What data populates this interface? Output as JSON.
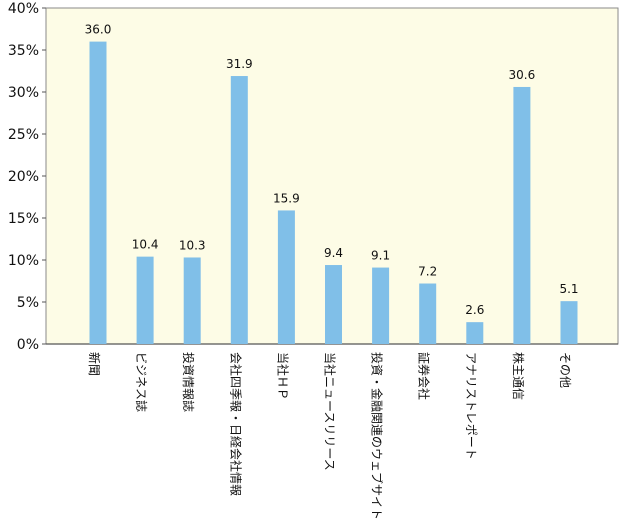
{
  "chart_data": {
    "type": "bar",
    "title": "",
    "xlabel": "",
    "ylabel": "",
    "categories": [
      "新聞",
      "ビジネス誌",
      "投資情報誌",
      "会社四季報・日経会社情報",
      "当社ＨＰ",
      "当社ニュースリリース",
      "投資・金融関連のウェブサイト",
      "証券会社",
      "アナリストレポート",
      "株主通信",
      "その他"
    ],
    "series": [
      {
        "values": [
          36.0,
          10.4,
          10.3,
          31.9,
          15.9,
          9.4,
          9.1,
          7.2,
          2.6,
          30.6,
          5.1
        ],
        "color": "#80bfe8"
      }
    ],
    "value_labels": [
      "36.0",
      "10.4",
      "10.3",
      "31.9",
      "15.9",
      "9.4",
      "9.1",
      "7.2",
      "2.6",
      "30.6",
      "5.1"
    ],
    "ylim": [
      0,
      40
    ],
    "yticks": [
      0,
      5,
      10,
      15,
      20,
      25,
      30,
      35,
      40
    ],
    "ytick_labels": [
      "0%",
      "5%",
      "10%",
      "15%",
      "20%",
      "25%",
      "30%",
      "35%",
      "40%"
    ],
    "grid": false,
    "plot_background": "#fdfce6",
    "axis_color": "#555555"
  }
}
